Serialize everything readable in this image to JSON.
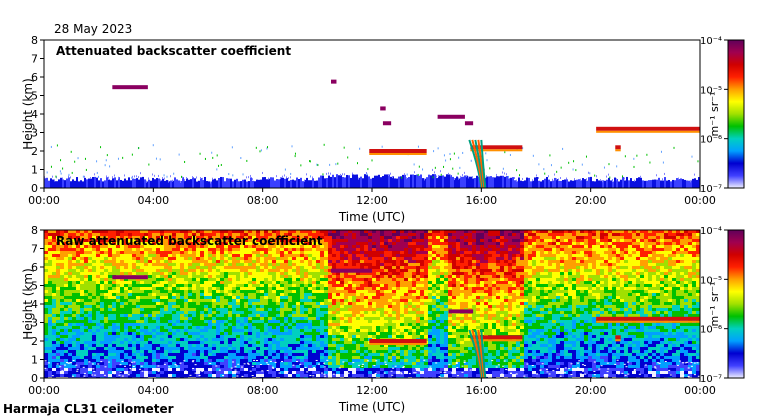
{
  "header": {
    "date": "28 May 2023"
  },
  "footer": {
    "station": "Harmaja CL31 ceilometer"
  },
  "colorbar": {
    "tick_labels": [
      "10⁻⁴",
      "10⁻⁵",
      "10⁻⁶",
      "10⁻⁷"
    ],
    "unit_label": "m⁻¹ sr⁻¹",
    "colors": [
      "#f0f0ff",
      "#4040ff",
      "#0000d0",
      "#00a0ff",
      "#00d0c0",
      "#00c000",
      "#a0e000",
      "#ffff00",
      "#ffa000",
      "#ff2000",
      "#d00000",
      "#a00050",
      "#60005a"
    ]
  },
  "chart_data": [
    {
      "type": "heatmap",
      "title": "Attenuated backscatter coefficient",
      "xlabel": "Time (UTC)",
      "ylabel": "Height (km)",
      "xlim": [
        0,
        24
      ],
      "ylim": [
        0,
        8
      ],
      "x_tick_labels": [
        "00:00",
        "04:00",
        "08:00",
        "12:00",
        "16:00",
        "20:00",
        "00:00"
      ],
      "y_tick_labels": [
        "0",
        "1",
        "2",
        "3",
        "4",
        "5",
        "6",
        "7",
        "8"
      ],
      "colorbar_log_range": [
        -7,
        -4
      ],
      "layers": [
        {
          "t0": 2.5,
          "t1": 3.8,
          "h": 5.45,
          "level": "high"
        },
        {
          "t0": 10.5,
          "t1": 10.7,
          "h": 5.75,
          "level": "high"
        },
        {
          "t0": 12.3,
          "t1": 12.5,
          "h": 4.3,
          "level": "high"
        },
        {
          "t0": 12.4,
          "t1": 12.7,
          "h": 3.5,
          "level": "high"
        },
        {
          "t0": 14.4,
          "t1": 15.4,
          "h": 3.85,
          "level": "high"
        },
        {
          "t0": 15.4,
          "t1": 15.7,
          "h": 3.5,
          "level": "high"
        },
        {
          "t0": 11.9,
          "t1": 14.0,
          "h": 2.0,
          "level": "mid"
        },
        {
          "t0": 15.6,
          "t1": 17.5,
          "h": 2.2,
          "level": "mid"
        },
        {
          "t0": 20.2,
          "t1": 24.0,
          "h": 3.2,
          "level": "mid"
        },
        {
          "t0": 20.9,
          "t1": 21.1,
          "h": 2.2,
          "level": "mid"
        }
      ]
    },
    {
      "type": "heatmap",
      "title": "Raw attenuated backscatter coefficient",
      "xlabel": "Time (UTC)",
      "ylabel": "Height (km)",
      "xlim": [
        0,
        24
      ],
      "ylim": [
        0,
        8
      ],
      "x_tick_labels": [
        "00:00",
        "04:00",
        "08:00",
        "12:00",
        "16:00",
        "20:00",
        "00:00"
      ],
      "y_tick_labels": [
        "0",
        "1",
        "2",
        "3",
        "4",
        "5",
        "6",
        "7",
        "8"
      ],
      "colorbar_log_range": [
        -7,
        -4
      ],
      "layers": [
        {
          "t0": 2.5,
          "t1": 3.8,
          "h": 5.45,
          "level": "high"
        },
        {
          "t0": 10.5,
          "t1": 12.0,
          "h": 5.8,
          "level": "high"
        },
        {
          "t0": 11.9,
          "t1": 14.0,
          "h": 2.0,
          "level": "mid"
        },
        {
          "t0": 14.8,
          "t1": 15.7,
          "h": 3.6,
          "level": "high"
        },
        {
          "t0": 15.6,
          "t1": 17.5,
          "h": 2.2,
          "level": "mid"
        },
        {
          "t0": 20.2,
          "t1": 24.0,
          "h": 3.2,
          "level": "mid"
        },
        {
          "t0": 20.9,
          "t1": 21.1,
          "h": 2.2,
          "level": "mid"
        }
      ]
    }
  ]
}
